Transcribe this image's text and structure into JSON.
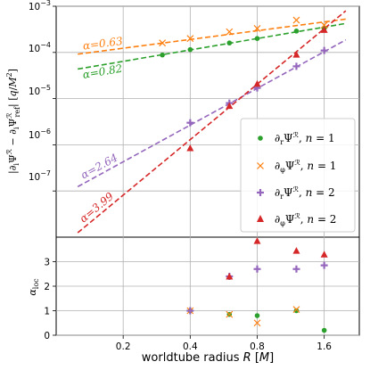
{
  "chart_data": [
    {
      "type": "scatter",
      "panel": "top",
      "log_x": true,
      "log_y": true,
      "ylabel": "|∂ᵢΨᴿ − ∂ᵢΨᴿ_ref| [q/M²]",
      "xlim": [
        0.1,
        2.3
      ],
      "ylim": [
        1e-08,
        0.001
      ],
      "y_ticks": [
        "10⁻⁷",
        "10⁻⁶",
        "10⁻⁵",
        "10⁻⁴",
        "10⁻³"
      ],
      "series": [
        {
          "name": "∂ᵣΨᴿ, n = 1",
          "marker": "circle",
          "color": "#2ca02c",
          "x": [
            0.3,
            0.4,
            0.6,
            0.8,
            1.2,
            1.6
          ],
          "y": [
            8.8e-05,
            0.000115,
            0.00016,
            0.0002,
            0.00029,
            0.00033
          ]
        },
        {
          "name": "∂φΨᴿ, n = 1",
          "marker": "x",
          "color": "#ff7f0e",
          "x": [
            0.3,
            0.4,
            0.6,
            0.8,
            1.2,
            1.6
          ],
          "y": [
            0.00016,
            0.0002,
            0.00028,
            0.00033,
            0.0005,
            0.00039
          ]
        },
        {
          "name": "∂ᵣΨᴿ, n = 2",
          "marker": "plus",
          "color": "#9467bd",
          "x": [
            0.4,
            0.6,
            0.8,
            1.2,
            1.6
          ],
          "y": [
            3e-06,
            8e-06,
            1.7e-05,
            5e-05,
            0.00011
          ]
        },
        {
          "name": "∂φΨᴿ, n = 2",
          "marker": "triangle",
          "color": "#d62728",
          "x": [
            0.4,
            0.6,
            0.8,
            1.2,
            1.6
          ],
          "y": [
            8.5e-07,
            7e-06,
            2.1e-05,
            9e-05,
            0.00031
          ]
        }
      ],
      "fit_lines": [
        {
          "label": "α=0.63",
          "color": "#ff7f0e",
          "slope": 0.63,
          "x0": 1.0,
          "y0": 0.00034
        },
        {
          "label": "α=0.82",
          "color": "#2ca02c",
          "slope": 0.82,
          "x0": 1.0,
          "y0": 0.00024
        },
        {
          "label": "α=2.64",
          "color": "#9467bd",
          "slope": 2.64,
          "x0": 1.0,
          "y0": 3e-05
        },
        {
          "label": "α=3.99",
          "color": "#d62728",
          "slope": 3.99,
          "x0": 1.0,
          "y0": 5e-05
        }
      ],
      "legend": "lower-right"
    },
    {
      "type": "scatter",
      "panel": "bottom",
      "log_x": true,
      "xlabel": "worldtube radius R [M]",
      "ylabel": "α_loc",
      "x_ticks": [
        "0.2",
        "0.4",
        "0.8",
        "1.6"
      ],
      "y_ticks": [
        "0",
        "1",
        "2",
        "3"
      ],
      "ylim": [
        0,
        4
      ],
      "series": [
        {
          "name": "∂ᵣΨᴿ, n = 1",
          "marker": "circle",
          "color": "#2ca02c",
          "x": [
            0.4,
            0.6,
            0.8,
            1.2,
            1.6
          ],
          "y": [
            1.0,
            0.85,
            0.8,
            1.0,
            0.2
          ]
        },
        {
          "name": "∂φΨᴿ, n = 1",
          "marker": "x",
          "color": "#ff7f0e",
          "x": [
            0.4,
            0.6,
            0.8,
            1.2
          ],
          "y": [
            1.0,
            0.85,
            0.5,
            1.05
          ]
        },
        {
          "name": "∂ᵣΨᴿ, n = 2",
          "marker": "plus",
          "color": "#9467bd",
          "x": [
            0.4,
            0.6,
            0.8,
            1.2,
            1.6
          ],
          "y": [
            1.0,
            2.4,
            2.7,
            2.7,
            2.85
          ]
        },
        {
          "name": "∂φΨᴿ, n = 2",
          "marker": "triangle",
          "color": "#d62728",
          "x": [
            0.6,
            0.8,
            1.2,
            1.6
          ],
          "y": [
            2.4,
            3.85,
            3.45,
            3.3
          ]
        }
      ]
    }
  ]
}
